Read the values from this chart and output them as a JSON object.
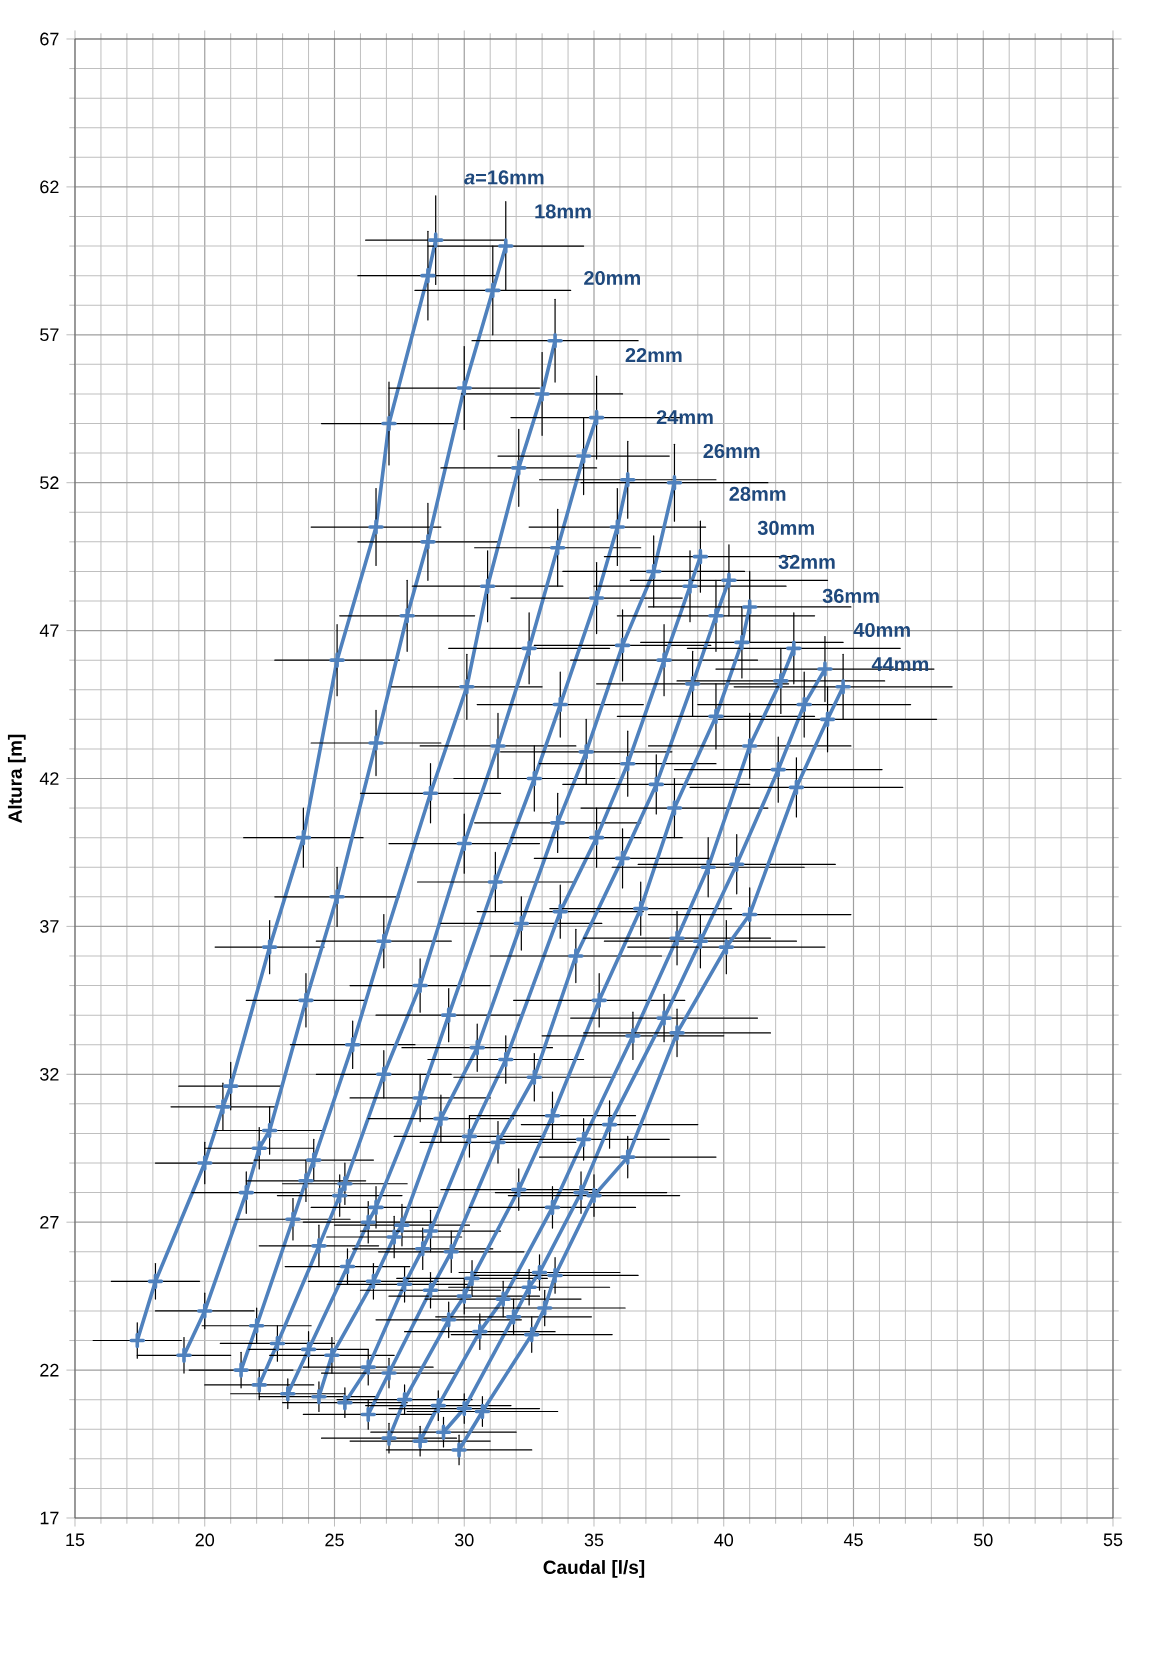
{
  "chart_data": {
    "type": "line",
    "xlabel": "Caudal [l/s]",
    "ylabel": "Altura [m]",
    "xlim": [
      15,
      55
    ],
    "xticks": [
      15,
      20,
      25,
      30,
      35,
      40,
      45,
      50,
      55
    ],
    "ylim": [
      17,
      67
    ],
    "yticks": [
      17,
      22,
      27,
      32,
      37,
      42,
      47,
      52,
      57,
      62,
      67
    ],
    "grid": true,
    "marker": "cross",
    "line_style": "solid",
    "series": [
      {
        "name": "*a*=16mm",
        "color": "#4f81bd",
        "x": [
          17.4,
          18.1,
          20.0,
          20.7,
          21.0,
          22.5,
          23.8,
          25.1,
          26.6,
          27.1,
          28.6,
          28.9
        ],
        "values": [
          23.0,
          25.0,
          29.0,
          30.9,
          31.6,
          36.3,
          40.0,
          46.0,
          50.5,
          54.0,
          59.0,
          60.2
        ],
        "xerrors": [
          1.7,
          1.7,
          1.9,
          2.0,
          2.0,
          2.1,
          2.3,
          2.4,
          2.5,
          2.6,
          2.7,
          2.7
        ],
        "errors": [
          0.6,
          0.6,
          0.7,
          0.8,
          0.8,
          0.9,
          1.0,
          1.2,
          1.3,
          1.4,
          1.5,
          1.5
        ]
      },
      {
        "name": "18mm",
        "color": "#4f81bd",
        "x": [
          19.2,
          20.0,
          21.6,
          22.1,
          22.5,
          23.9,
          25.1,
          26.6,
          27.8,
          28.6,
          30.0,
          31.1,
          31.6
        ],
        "values": [
          22.5,
          24.0,
          28.0,
          29.5,
          30.1,
          34.5,
          38.0,
          43.2,
          47.5,
          50.0,
          55.2,
          58.5,
          60.0
        ],
        "xerrors": [
          1.8,
          1.9,
          2.1,
          2.1,
          2.1,
          2.3,
          2.4,
          2.5,
          2.6,
          2.7,
          2.9,
          3.0,
          3.0
        ],
        "errors": [
          0.6,
          0.6,
          0.7,
          0.7,
          0.8,
          0.9,
          1.0,
          1.1,
          1.2,
          1.3,
          1.4,
          1.5,
          1.5
        ]
      },
      {
        "name": "20mm",
        "color": "#4f81bd",
        "x": [
          21.4,
          22.0,
          23.4,
          23.9,
          24.2,
          25.7,
          26.9,
          28.7,
          30.1,
          30.9,
          32.1,
          33.0,
          33.5
        ],
        "values": [
          22.0,
          23.5,
          27.1,
          28.4,
          29.1,
          33.0,
          36.5,
          41.5,
          45.1,
          48.5,
          52.5,
          55.0,
          56.8
        ],
        "xerrors": [
          2.0,
          2.1,
          2.2,
          2.3,
          2.3,
          2.4,
          2.6,
          2.7,
          2.9,
          2.9,
          3.0,
          3.1,
          3.2
        ],
        "errors": [
          0.6,
          0.6,
          0.7,
          0.7,
          0.7,
          0.8,
          0.9,
          1.0,
          1.1,
          1.2,
          1.3,
          1.4,
          1.4
        ]
      },
      {
        "name": "22mm",
        "color": "#4f81bd",
        "x": [
          22.1,
          22.8,
          24.4,
          25.2,
          25.4,
          26.9,
          28.3,
          30.0,
          31.3,
          32.5,
          33.6,
          34.6,
          35.1
        ],
        "values": [
          21.5,
          22.9,
          26.2,
          27.9,
          28.3,
          32.0,
          35.0,
          39.8,
          43.1,
          46.4,
          49.8,
          52.9,
          54.2
        ],
        "xerrors": [
          2.1,
          2.2,
          2.3,
          2.4,
          2.4,
          2.6,
          2.7,
          2.9,
          3.0,
          3.1,
          3.2,
          3.3,
          3.3
        ],
        "errors": [
          0.5,
          0.6,
          0.7,
          0.7,
          0.7,
          0.8,
          0.9,
          1.0,
          1.1,
          1.2,
          1.3,
          1.3,
          1.4
        ]
      },
      {
        "name": "24mm",
        "color": "#4f81bd",
        "x": [
          23.2,
          24.0,
          25.5,
          26.3,
          26.6,
          28.3,
          29.4,
          31.2,
          32.7,
          33.7,
          35.1,
          35.9,
          36.3
        ],
        "values": [
          21.2,
          22.7,
          25.5,
          27.0,
          27.5,
          31.2,
          34.0,
          38.5,
          42.0,
          44.5,
          48.1,
          50.5,
          52.1
        ],
        "xerrors": [
          2.2,
          2.3,
          2.4,
          2.5,
          2.5,
          2.7,
          2.8,
          3.0,
          3.1,
          3.2,
          3.3,
          3.4,
          3.4
        ],
        "errors": [
          0.5,
          0.6,
          0.6,
          0.7,
          0.7,
          0.8,
          0.9,
          1.0,
          1.1,
          1.1,
          1.2,
          1.3,
          1.3
        ]
      },
      {
        "name": "26mm",
        "color": "#4f81bd",
        "x": [
          24.4,
          24.9,
          26.5,
          27.3,
          27.6,
          29.1,
          30.5,
          32.2,
          33.6,
          34.7,
          36.1,
          37.3,
          38.1
        ],
        "values": [
          21.1,
          22.5,
          25.0,
          26.5,
          26.9,
          30.5,
          32.9,
          37.1,
          40.5,
          42.9,
          46.5,
          49.0,
          52.0
        ],
        "xerrors": [
          2.3,
          2.4,
          2.5,
          2.6,
          2.6,
          2.8,
          2.9,
          3.1,
          3.2,
          3.3,
          3.4,
          3.5,
          3.6
        ],
        "errors": [
          0.5,
          0.6,
          0.6,
          0.7,
          0.7,
          0.8,
          0.8,
          0.9,
          1.0,
          1.1,
          1.2,
          1.2,
          1.3
        ]
      },
      {
        "name": "28mm",
        "color": "#4f81bd",
        "x": [
          25.4,
          26.3,
          27.7,
          28.4,
          28.7,
          30.2,
          31.6,
          33.7,
          35.1,
          36.3,
          37.7,
          38.7,
          39.1
        ],
        "values": [
          20.9,
          22.1,
          24.9,
          26.1,
          26.7,
          29.9,
          32.5,
          37.5,
          40.0,
          42.5,
          46.0,
          48.5,
          49.5
        ],
        "xerrors": [
          2.4,
          2.5,
          2.6,
          2.7,
          2.7,
          2.9,
          3.0,
          3.2,
          3.3,
          3.4,
          3.6,
          3.7,
          3.7
        ],
        "errors": [
          0.5,
          0.6,
          0.6,
          0.7,
          0.7,
          0.7,
          0.8,
          0.9,
          1.0,
          1.1,
          1.2,
          1.2,
          1.2
        ]
      },
      {
        "name": "30mm",
        "color": "#4f81bd",
        "x": [
          26.3,
          27.1,
          28.7,
          29.5,
          31.3,
          32.7,
          34.3,
          36.1,
          37.4,
          38.8,
          39.7,
          40.2
        ],
        "values": [
          20.5,
          21.9,
          24.7,
          26.0,
          29.7,
          31.9,
          36.0,
          39.3,
          41.8,
          45.2,
          47.5,
          48.7
        ],
        "xerrors": [
          2.5,
          2.6,
          2.7,
          2.8,
          3.0,
          3.1,
          3.3,
          3.4,
          3.6,
          3.7,
          3.8,
          3.8
        ],
        "errors": [
          0.5,
          0.5,
          0.6,
          0.7,
          0.7,
          0.8,
          0.9,
          1.0,
          1.0,
          1.1,
          1.2,
          1.2
        ]
      },
      {
        "name": "32mm",
        "color": "#4f81bd",
        "x": [
          27.1,
          27.7,
          29.4,
          30.0,
          30.3,
          32.1,
          33.4,
          35.2,
          36.8,
          38.1,
          39.7,
          40.7,
          41.0
        ],
        "values": [
          19.7,
          21.0,
          23.7,
          24.5,
          25.1,
          28.1,
          30.6,
          34.5,
          37.6,
          41.0,
          44.1,
          46.6,
          47.8
        ],
        "xerrors": [
          2.6,
          2.6,
          2.8,
          2.9,
          2.9,
          3.0,
          3.2,
          3.3,
          3.5,
          3.6,
          3.8,
          3.9,
          3.9
        ],
        "errors": [
          0.5,
          0.5,
          0.6,
          0.6,
          0.6,
          0.7,
          0.8,
          0.9,
          0.9,
          1.0,
          1.1,
          1.2,
          1.2
        ]
      },
      {
        "name": "36mm",
        "color": "#4f81bd",
        "x": [
          28.3,
          29.0,
          30.6,
          31.5,
          33.4,
          34.6,
          36.5,
          38.2,
          39.4,
          41.0,
          42.2,
          42.7
        ],
        "values": [
          19.6,
          20.8,
          23.3,
          24.4,
          27.5,
          29.8,
          33.3,
          36.6,
          39.0,
          43.1,
          45.3,
          46.4
        ],
        "xerrors": [
          2.7,
          2.8,
          2.9,
          3.0,
          3.2,
          3.3,
          3.5,
          3.6,
          3.7,
          3.9,
          4.0,
          4.1
        ],
        "errors": [
          0.5,
          0.5,
          0.6,
          0.6,
          0.7,
          0.7,
          0.8,
          0.9,
          1.0,
          1.1,
          1.1,
          1.2
        ]
      },
      {
        "name": "40mm",
        "color": "#4f81bd",
        "x": [
          29.2,
          30.0,
          31.9,
          32.5,
          32.9,
          34.5,
          35.6,
          37.7,
          39.1,
          40.5,
          42.1,
          43.1,
          43.9
        ],
        "values": [
          19.9,
          20.7,
          23.8,
          24.8,
          25.3,
          28.0,
          30.3,
          33.9,
          36.5,
          39.1,
          42.3,
          44.5,
          45.7
        ],
        "xerrors": [
          2.8,
          2.9,
          3.0,
          3.1,
          3.1,
          3.3,
          3.4,
          3.6,
          3.7,
          3.8,
          4.0,
          4.1,
          4.2
        ],
        "errors": [
          0.5,
          0.5,
          0.6,
          0.6,
          0.6,
          0.7,
          0.8,
          0.8,
          0.9,
          1.0,
          1.1,
          1.1,
          1.1
        ]
      },
      {
        "name": "44mm",
        "color": "#4f81bd",
        "x": [
          29.8,
          30.7,
          32.6,
          33.1,
          33.5,
          35.0,
          36.3,
          38.2,
          40.1,
          41.0,
          42.8,
          44.0,
          44.6
        ],
        "values": [
          19.3,
          20.6,
          23.2,
          24.1,
          25.2,
          27.9,
          29.2,
          33.4,
          36.3,
          37.4,
          41.7,
          44.0,
          45.1
        ],
        "xerrors": [
          2.8,
          2.9,
          3.1,
          3.1,
          3.2,
          3.3,
          3.4,
          3.6,
          3.8,
          3.9,
          4.1,
          4.2,
          4.2
        ],
        "errors": [
          0.5,
          0.5,
          0.6,
          0.6,
          0.6,
          0.7,
          0.7,
          0.8,
          0.9,
          0.9,
          1.0,
          1.1,
          1.1
        ]
      }
    ]
  }
}
